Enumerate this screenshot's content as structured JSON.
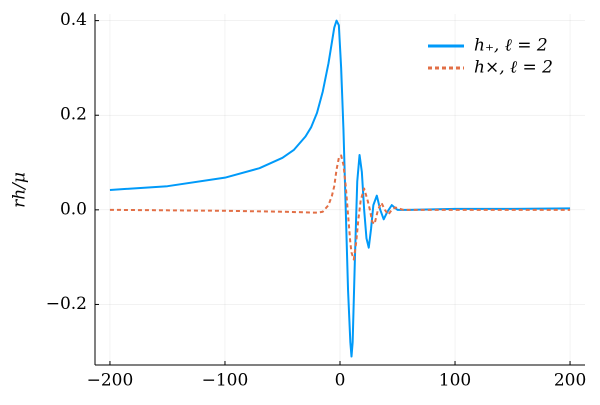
{
  "chart_data": {
    "type": "line",
    "ylabel": "rh/μ",
    "xlim": [
      -213,
      213
    ],
    "ylim": [
      -0.328,
      0.414
    ],
    "xticks": [
      {
        "value": -200,
        "label": "−200"
      },
      {
        "value": -100,
        "label": "−100"
      },
      0,
      100,
      200
    ],
    "yticks": [
      {
        "value": -0.2,
        "label": "−0.2"
      },
      {
        "value": 0,
        "label": "0.0"
      },
      0.2,
      0.4
    ],
    "grid": true,
    "legend": "top-right",
    "series": [
      {
        "name": "h₊, ℓ = 2",
        "color": "#009af9",
        "dash": false,
        "x": [
          -200,
          -150,
          -100,
          -70,
          -50,
          -40,
          -30,
          -25,
          -20,
          -15,
          -10,
          -7,
          -5,
          -3,
          -1,
          1,
          3,
          5,
          7,
          9,
          10,
          11,
          13,
          15,
          17,
          19,
          21,
          23,
          25,
          27,
          29,
          32,
          35,
          38,
          41,
          45,
          50,
          60,
          100,
          150,
          200
        ],
        "values": [
          0.042,
          0.05,
          0.068,
          0.088,
          0.11,
          0.127,
          0.155,
          0.175,
          0.205,
          0.25,
          0.31,
          0.355,
          0.385,
          0.4,
          0.39,
          0.3,
          0.17,
          0.0,
          -0.17,
          -0.28,
          -0.31,
          -0.28,
          -0.1,
          0.06,
          0.116,
          0.08,
          0.0,
          -0.06,
          -0.08,
          -0.04,
          0.01,
          0.03,
          0.0,
          -0.02,
          -0.005,
          0.01,
          0.0,
          0.0,
          0.002,
          0.002,
          0.003
        ]
      },
      {
        "name": "h×, ℓ = 2",
        "color": "#e26f46",
        "dash": true,
        "x": [
          -200,
          -100,
          -50,
          -20,
          -15,
          -10,
          -7,
          -5,
          -3,
          -1,
          1,
          3,
          5,
          7,
          9,
          10,
          12,
          14,
          16,
          18,
          21,
          24,
          26,
          28,
          30,
          33,
          36,
          39,
          42,
          45,
          48,
          55,
          70,
          200
        ],
        "values": [
          0.0,
          -0.002,
          -0.004,
          -0.006,
          -0.004,
          0.01,
          0.03,
          0.05,
          0.085,
          0.11,
          0.115,
          0.095,
          0.05,
          -0.01,
          -0.07,
          -0.09,
          -0.105,
          -0.07,
          -0.02,
          0.02,
          0.045,
          0.02,
          0.0,
          -0.025,
          -0.03,
          0.0,
          0.015,
          0.0,
          -0.01,
          0.0,
          0.005,
          0.0,
          0.0,
          0.0
        ]
      }
    ]
  }
}
